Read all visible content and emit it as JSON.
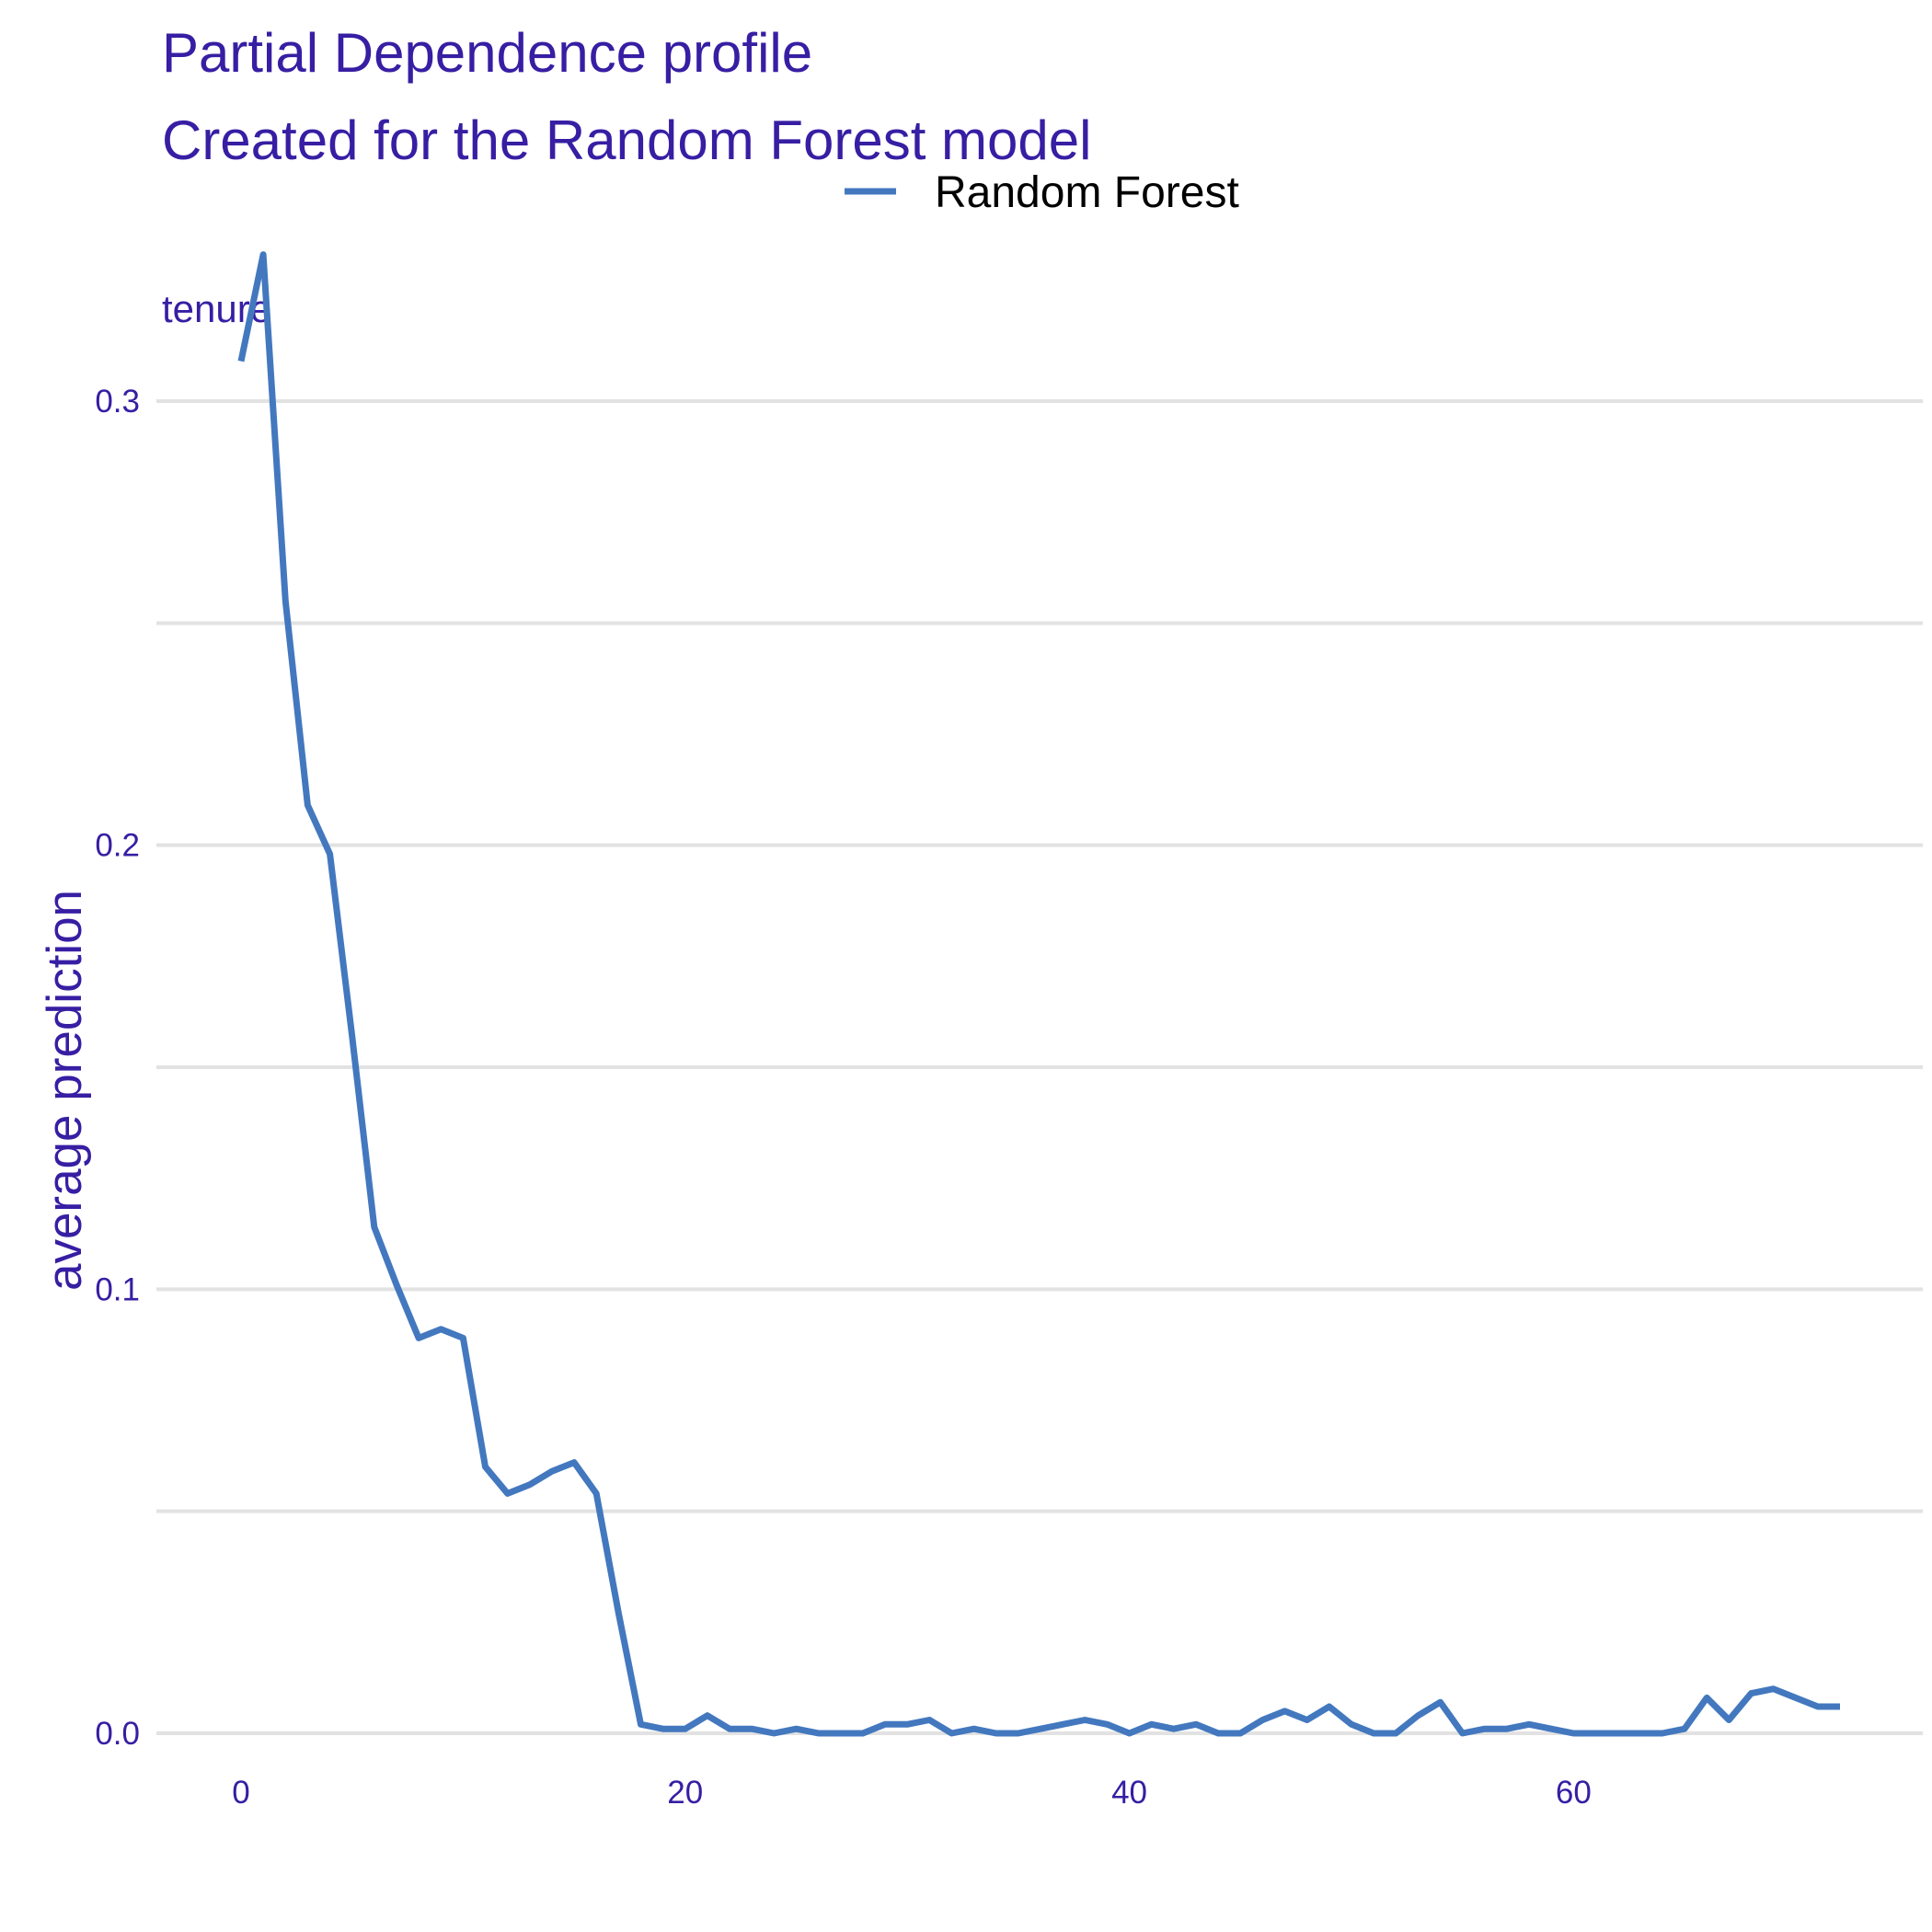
{
  "colors": {
    "title": "#371ea3",
    "line": "#4378bf",
    "grid": "#e2e2e2",
    "legend_text": "#000000"
  },
  "chart_data": {
    "type": "line",
    "title": "Partial Dependence profile",
    "subtitle": "Created for the Random Forest model",
    "facet_label": "tenure",
    "xlabel": "",
    "ylabel": "average prediction",
    "xlim": [
      0,
      72
    ],
    "ylim": [
      0,
      0.33
    ],
    "x_ticks": [
      {
        "value": 0,
        "label": "0"
      },
      {
        "value": 20,
        "label": "20"
      },
      {
        "value": 40,
        "label": "40"
      },
      {
        "value": 60,
        "label": "60"
      }
    ],
    "y_ticks": [
      {
        "value": 0.0,
        "label": "0.0"
      },
      {
        "value": 0.1,
        "label": "0.1"
      },
      {
        "value": 0.2,
        "label": "0.2"
      },
      {
        "value": 0.3,
        "label": "0.3"
      }
    ],
    "y_minor_gridlines": [
      0.05,
      0.15,
      0.25
    ],
    "grid": true,
    "legend_position": "top",
    "series": [
      {
        "name": "Random Forest",
        "x": [
          0,
          1,
          2,
          3,
          4,
          5,
          6,
          7,
          8,
          9,
          10,
          11,
          12,
          13,
          14,
          15,
          16,
          17,
          18,
          19,
          20,
          21,
          22,
          23,
          24,
          25,
          26,
          27,
          28,
          29,
          30,
          31,
          32,
          33,
          34,
          35,
          36,
          37,
          38,
          39,
          40,
          41,
          42,
          43,
          44,
          45,
          46,
          47,
          48,
          49,
          50,
          51,
          52,
          53,
          54,
          55,
          56,
          57,
          58,
          59,
          60,
          61,
          62,
          63,
          64,
          65,
          66,
          67,
          68,
          69,
          70,
          71,
          72
        ],
        "y": [
          0.309,
          0.333,
          0.255,
          0.209,
          0.198,
          0.157,
          0.114,
          0.101,
          0.089,
          0.091,
          0.089,
          0.06,
          0.054,
          0.056,
          0.059,
          0.061,
          0.054,
          0.027,
          0.002,
          0.001,
          0.001,
          0.004,
          0.001,
          0.001,
          0.0,
          0.001,
          0.0,
          0.0,
          0.0,
          0.002,
          0.002,
          0.003,
          0.0,
          0.001,
          0.0,
          0.0,
          0.001,
          0.002,
          0.003,
          0.002,
          0.0,
          0.002,
          0.001,
          0.002,
          0.0,
          0.0,
          0.003,
          0.005,
          0.003,
          0.006,
          0.002,
          0.0,
          0.0,
          0.004,
          0.007,
          0.0,
          0.001,
          0.001,
          0.002,
          0.001,
          0.0,
          0.0,
          0.0,
          0.0,
          0.0,
          0.001,
          0.008,
          0.003,
          0.009,
          0.01,
          0.008,
          0.006,
          0.006
        ]
      }
    ]
  }
}
